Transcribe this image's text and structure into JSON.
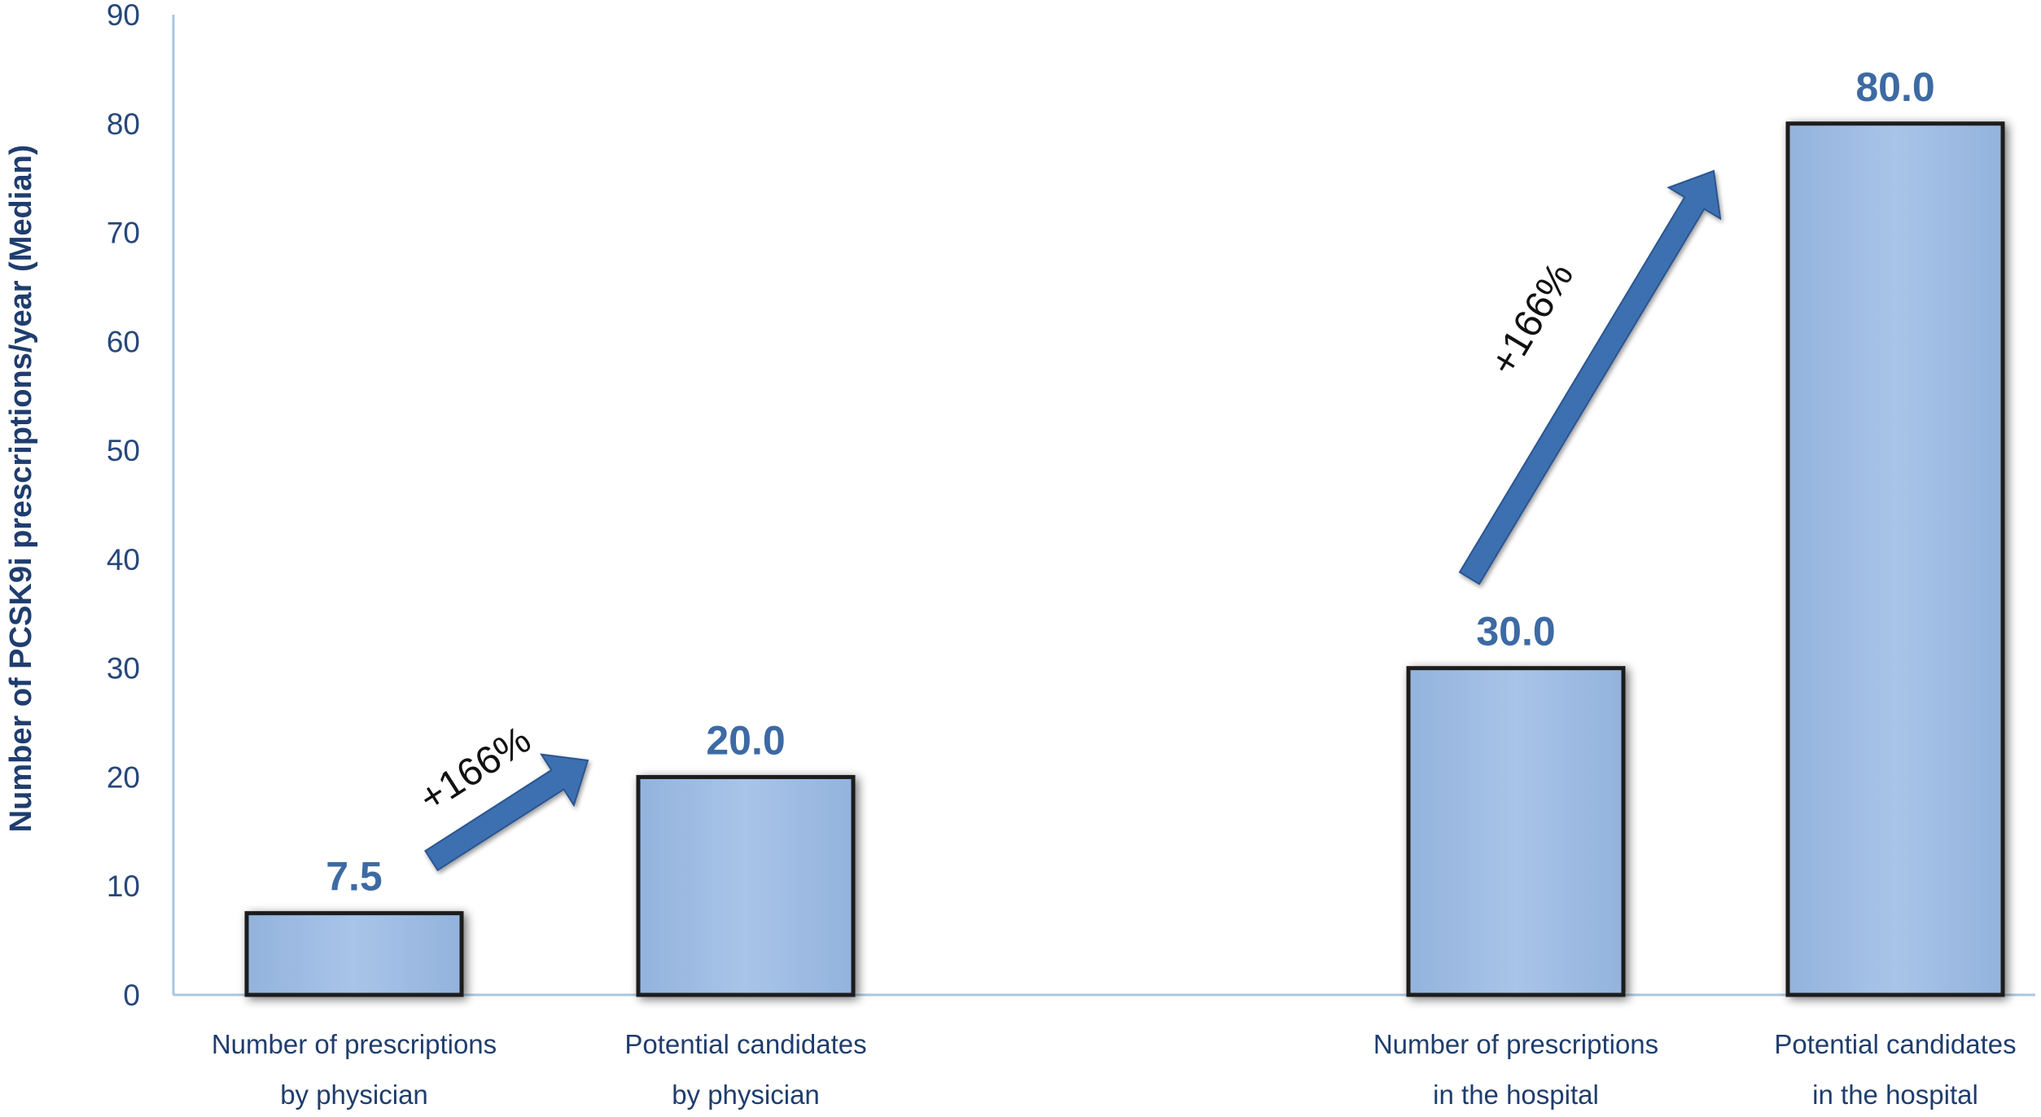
{
  "chart_data": {
    "type": "bar",
    "categories": [
      [
        "Number of prescriptions",
        "by physician"
      ],
      [
        "Potential candidates",
        "by physician"
      ],
      [
        "Number of prescriptions",
        "in the hospital"
      ],
      [
        "Potential candidates",
        "in the hospital"
      ]
    ],
    "values": [
      7.5,
      20.0,
      30.0,
      80.0
    ],
    "data_labels": [
      "7.5",
      "20.0",
      "30.0",
      "80.0"
    ],
    "ylabel": "Number of PCSK9i prescriptions/year (Median)",
    "xlabel": "",
    "ylim": [
      0,
      90
    ],
    "yticks": [
      0,
      10,
      20,
      30,
      40,
      50,
      60,
      70,
      80,
      90
    ],
    "grid": false,
    "annotations": [
      {
        "text": "+166%",
        "from_category": 0,
        "to_category": 1
      },
      {
        "text": "+166%",
        "from_category": 2,
        "to_category": 3
      }
    ],
    "colors": {
      "bar_fill": "#a4c1e6",
      "bar_border": "#1a1a1a",
      "data_label": "#3d6aa3",
      "arrow": "#3e6fb0",
      "axis": "#a9c6e2",
      "tick_text": "#27477a",
      "category_text": "#1f3d6e"
    }
  }
}
